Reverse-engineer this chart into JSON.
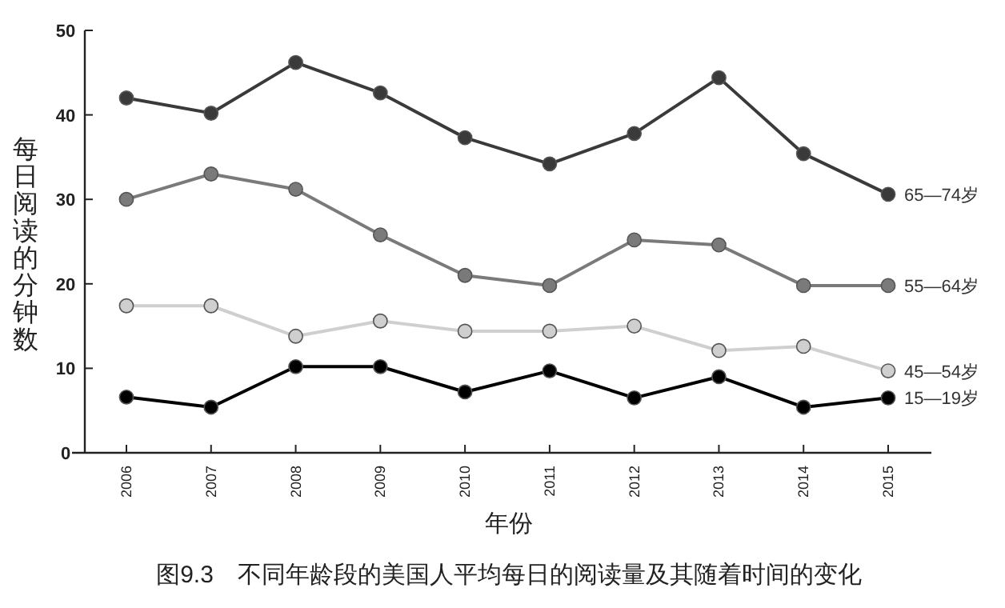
{
  "chart_data": {
    "type": "line",
    "title": "图9.3　不同年龄段的美国人平均每日的阅读量及其随着时间的变化",
    "xlabel": "年份",
    "ylabel": "每日阅读的分钟数",
    "categories": [
      "2006",
      "2007",
      "2008",
      "2009",
      "2010",
      "2011",
      "2012",
      "2013",
      "2014",
      "2015"
    ],
    "series": [
      {
        "name": "65—74岁",
        "color": "#3a3a3a",
        "values": [
          42.0,
          40.2,
          46.2,
          42.6,
          37.3,
          34.2,
          37.8,
          44.4,
          35.4,
          30.6
        ]
      },
      {
        "name": "55—64岁",
        "color": "#7a7a7a",
        "values": [
          30.0,
          33.0,
          31.2,
          25.8,
          21.0,
          19.8,
          25.2,
          24.6,
          19.8,
          19.8
        ]
      },
      {
        "name": "45—54岁",
        "color": "#cfcfcf",
        "values": [
          17.4,
          17.4,
          13.8,
          15.6,
          14.4,
          14.4,
          15.0,
          12.1,
          12.6,
          9.7
        ]
      },
      {
        "name": "15—19岁",
        "color": "#000000",
        "values": [
          6.6,
          5.4,
          10.2,
          10.2,
          7.2,
          9.7,
          6.5,
          9.0,
          5.4,
          6.5
        ]
      }
    ],
    "ylim": [
      0,
      50
    ],
    "yticks": [
      0,
      10,
      20,
      30,
      40,
      50
    ],
    "marker": "circle",
    "line_style": "solid"
  }
}
